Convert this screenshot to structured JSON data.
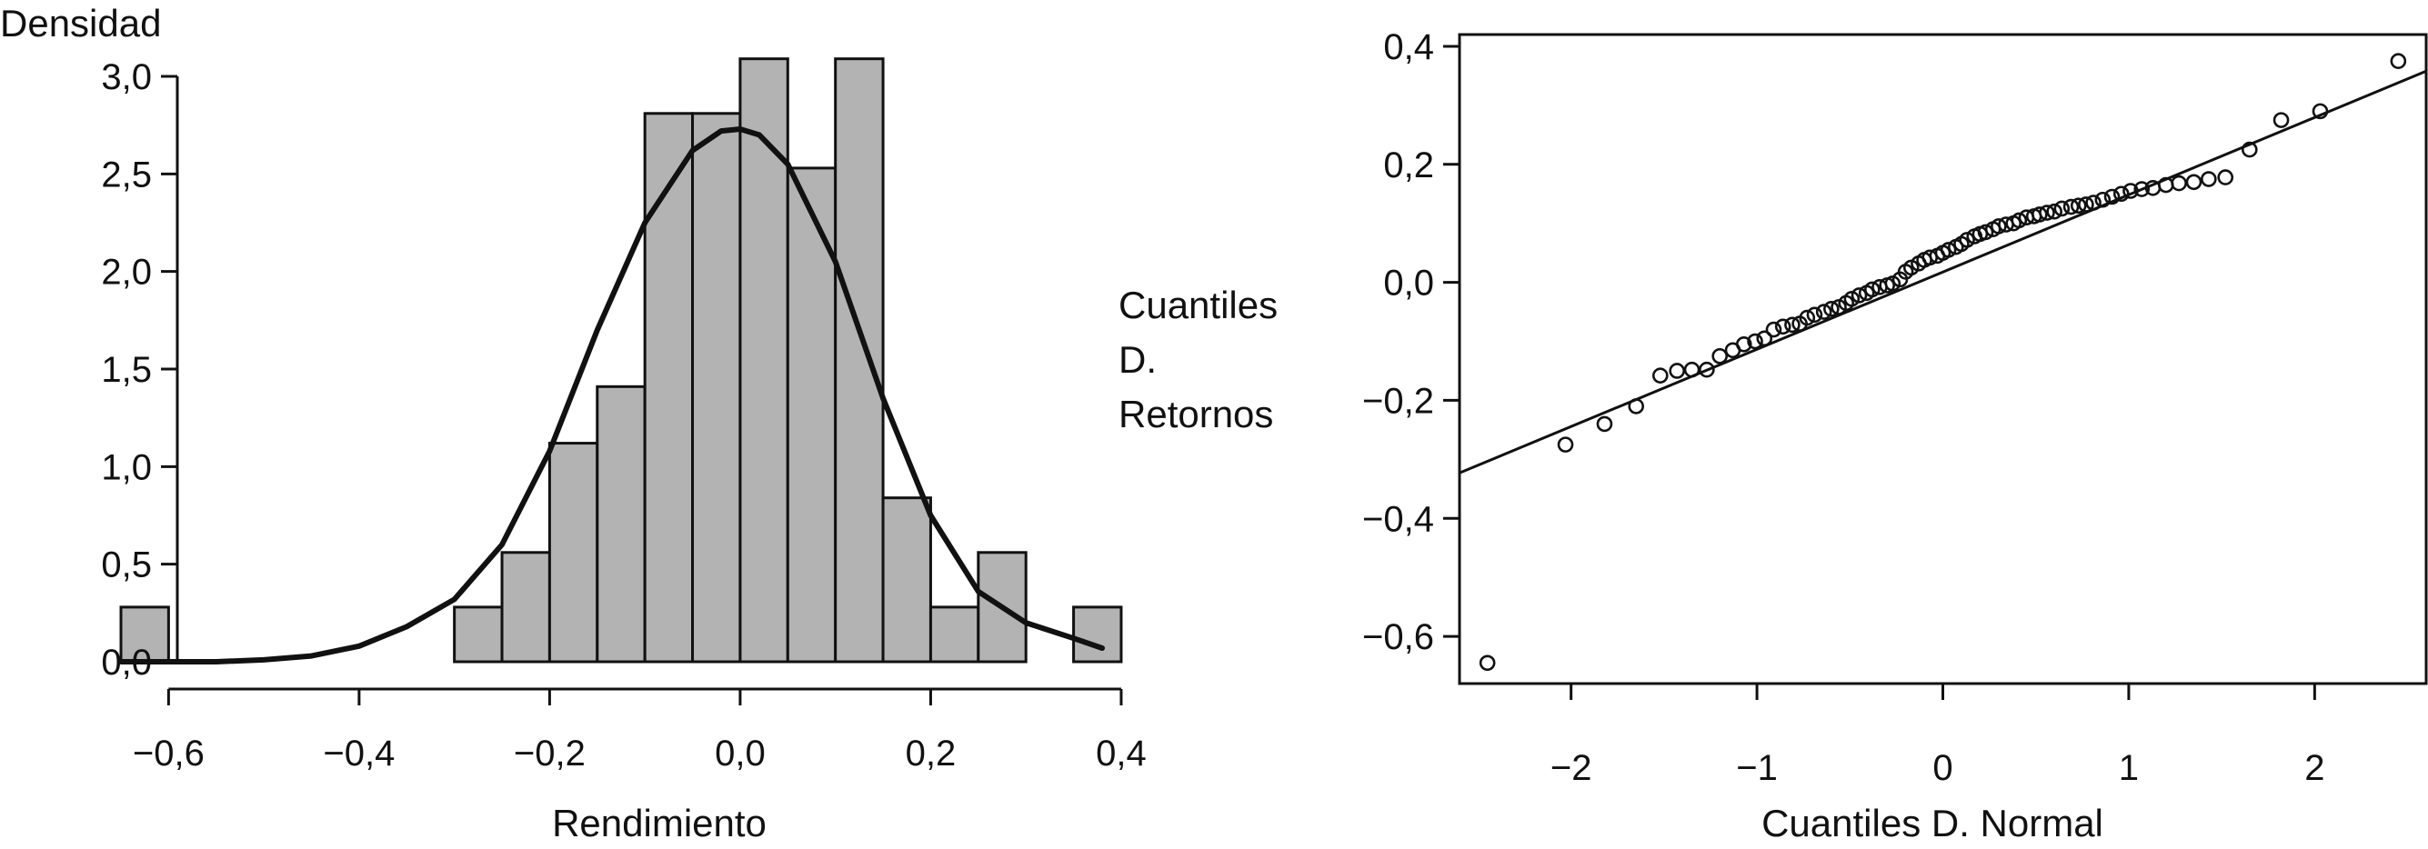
{
  "chart_data": [
    {
      "type": "bar",
      "subtype": "histogram-with-density",
      "title": "",
      "xlabel": "Rendimiento",
      "ylabel": "Densidad",
      "xlim": [
        -0.65,
        0.38
      ],
      "ylim": [
        0,
        3.0
      ],
      "x_tick_values": [
        -0.6,
        -0.4,
        -0.2,
        0.0,
        0.2,
        0.4
      ],
      "x_tick_labels": [
        "−0,6",
        "−0,4",
        "−0,2",
        "0,0",
        "0,2",
        "0,4"
      ],
      "y_tick_values": [
        0,
        0.5,
        1.0,
        1.5,
        2.0,
        2.5,
        3.0
      ],
      "y_tick_labels": [
        "0,0",
        "0,5",
        "1,0",
        "1,5",
        "2,0",
        "2,5",
        "3,0"
      ],
      "bin_width": 0.05,
      "bins": [
        {
          "x0": -0.65,
          "x1": -0.6,
          "density": 0.28
        },
        {
          "x0": -0.3,
          "x1": -0.25,
          "density": 0.28
        },
        {
          "x0": -0.25,
          "x1": -0.2,
          "density": 0.56
        },
        {
          "x0": -0.2,
          "x1": -0.15,
          "density": 1.12
        },
        {
          "x0": -0.15,
          "x1": -0.1,
          "density": 1.41
        },
        {
          "x0": -0.1,
          "x1": -0.05,
          "density": 2.81
        },
        {
          "x0": -0.05,
          "x1": 0.0,
          "density": 2.81
        },
        {
          "x0": 0.0,
          "x1": 0.05,
          "density": 3.09
        },
        {
          "x0": 0.05,
          "x1": 0.1,
          "density": 2.53
        },
        {
          "x0": 0.1,
          "x1": 0.15,
          "density": 3.09
        },
        {
          "x0": 0.15,
          "x1": 0.2,
          "density": 0.84
        },
        {
          "x0": 0.2,
          "x1": 0.25,
          "density": 0.28
        },
        {
          "x0": 0.25,
          "x1": 0.3,
          "density": 0.56
        },
        {
          "x0": 0.35,
          "x1": 0.4,
          "density": 0.28
        }
      ],
      "density_curve": {
        "x": [
          -0.65,
          -0.6,
          -0.55,
          -0.5,
          -0.45,
          -0.4,
          -0.35,
          -0.3,
          -0.25,
          -0.2,
          -0.15,
          -0.1,
          -0.05,
          -0.02,
          0.0,
          0.02,
          0.05,
          0.1,
          0.15,
          0.2,
          0.25,
          0.3,
          0.35,
          0.38
        ],
        "y": [
          0.0,
          0.0,
          0.0,
          0.01,
          0.03,
          0.08,
          0.18,
          0.32,
          0.6,
          1.08,
          1.7,
          2.25,
          2.62,
          2.72,
          2.73,
          2.7,
          2.55,
          2.05,
          1.35,
          0.75,
          0.36,
          0.2,
          0.12,
          0.07
        ]
      }
    },
    {
      "type": "scatter",
      "subtype": "qq-plot",
      "title": "",
      "xlabel": "Cuantiles D. Normal",
      "ylabel_lines": [
        "Cuantiles",
        "D.",
        "Retornos"
      ],
      "xlim": [
        -2.6,
        2.6
      ],
      "ylim": [
        -0.68,
        0.42
      ],
      "x_tick_values": [
        -2,
        -1,
        0,
        1,
        2
      ],
      "x_tick_labels": [
        "−2",
        "−1",
        "0",
        "1",
        "2"
      ],
      "y_tick_values": [
        -0.6,
        -0.4,
        -0.2,
        0.0,
        0.2,
        0.4
      ],
      "y_tick_labels": [
        "−0,6",
        "−0,4",
        "−0,2",
        "0,0",
        "0,2",
        "0,4"
      ],
      "reference_line": {
        "x": [
          -2.6,
          2.6
        ],
        "y": [
          -0.323,
          0.358
        ]
      },
      "points": {
        "x": [
          -2.45,
          -2.03,
          -1.82,
          -1.65,
          -1.52,
          -1.43,
          -1.35,
          -1.27,
          -1.2,
          -1.13,
          -1.07,
          -1.01,
          -0.96,
          -0.91,
          -0.86,
          -0.81,
          -0.77,
          -0.73,
          -0.69,
          -0.64,
          -0.6,
          -0.56,
          -0.52,
          -0.49,
          -0.45,
          -0.41,
          -0.38,
          -0.34,
          -0.3,
          -0.27,
          -0.23,
          -0.2,
          -0.17,
          -0.13,
          -0.1,
          -0.07,
          -0.03,
          0.0,
          0.03,
          0.07,
          0.1,
          0.13,
          0.17,
          0.2,
          0.23,
          0.27,
          0.3,
          0.34,
          0.38,
          0.41,
          0.45,
          0.49,
          0.52,
          0.56,
          0.6,
          0.64,
          0.69,
          0.73,
          0.77,
          0.81,
          0.86,
          0.91,
          0.96,
          1.01,
          1.07,
          1.13,
          1.2,
          1.27,
          1.35,
          1.43,
          1.52,
          1.65,
          1.82,
          2.03,
          2.45
        ],
        "y": [
          -0.645,
          -0.275,
          -0.24,
          -0.21,
          -0.158,
          -0.15,
          -0.148,
          -0.148,
          -0.125,
          -0.115,
          -0.105,
          -0.1,
          -0.095,
          -0.08,
          -0.075,
          -0.072,
          -0.07,
          -0.06,
          -0.055,
          -0.05,
          -0.045,
          -0.042,
          -0.035,
          -0.028,
          -0.022,
          -0.018,
          -0.012,
          -0.008,
          -0.005,
          -0.002,
          0.005,
          0.018,
          0.025,
          0.032,
          0.038,
          0.042,
          0.045,
          0.05,
          0.055,
          0.06,
          0.065,
          0.072,
          0.078,
          0.082,
          0.085,
          0.09,
          0.095,
          0.098,
          0.1,
          0.105,
          0.11,
          0.112,
          0.115,
          0.118,
          0.12,
          0.125,
          0.128,
          0.13,
          0.132,
          0.135,
          0.14,
          0.145,
          0.15,
          0.155,
          0.158,
          0.16,
          0.165,
          0.168,
          0.17,
          0.175,
          0.178,
          0.225,
          0.275,
          0.29,
          0.375
        ]
      }
    }
  ]
}
